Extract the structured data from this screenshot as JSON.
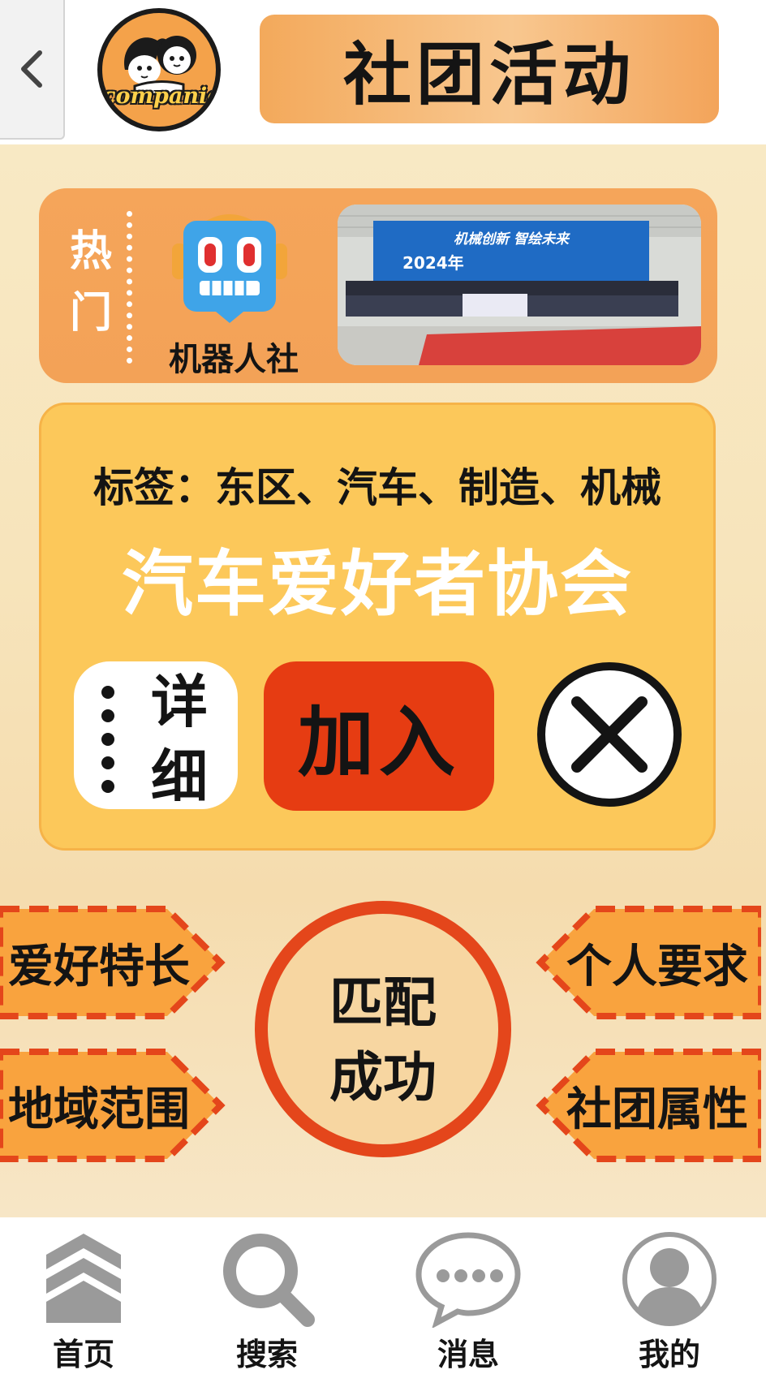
{
  "header": {
    "back_icon": "chevron-left-icon",
    "logo_text": "companion",
    "title": "社团活动"
  },
  "hot": {
    "label": "热门",
    "club_name": "机器人社",
    "photo_banner_line1": "机械创新  智绘未来",
    "photo_banner_year": "2024年",
    "colors": {
      "card": "#f5a55a"
    }
  },
  "club": {
    "tags": "标签：东区、汽车、制造、机械",
    "name": "汽车爱好者协会",
    "detail_label": "详细",
    "join_label": "加入",
    "close_icon": "close-circle-icon",
    "colors": {
      "card": "#fcc85a",
      "join": "#e63c12"
    }
  },
  "match": {
    "left_items": [
      "爱好特长",
      "地域范围"
    ],
    "right_items": [
      "个人要求",
      "社团属性"
    ],
    "center_label_line1": "匹配",
    "center_label_line2": "成功",
    "colors": {
      "accent": "#e4461b",
      "tag": "#f9a33e"
    }
  },
  "nav": {
    "items": [
      {
        "label": "首页",
        "icon": "home-chevrons-icon"
      },
      {
        "label": "搜索",
        "icon": "search-icon"
      },
      {
        "label": "消息",
        "icon": "chat-bubble-icon"
      },
      {
        "label": "我的",
        "icon": "user-avatar-icon"
      }
    ]
  }
}
